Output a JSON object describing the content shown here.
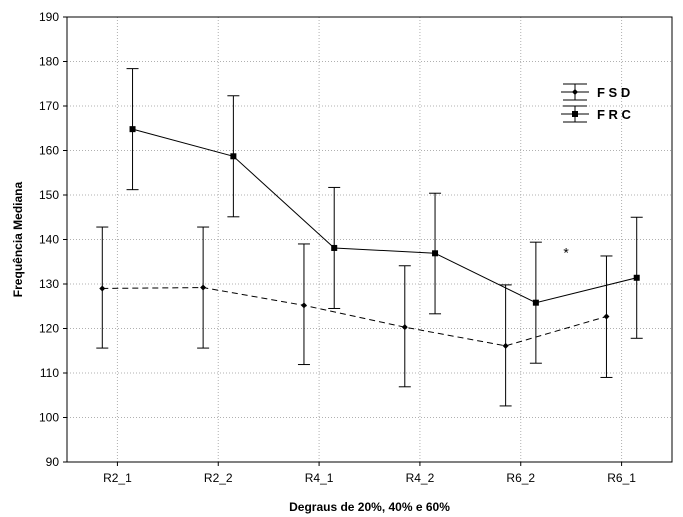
{
  "chart_data": {
    "type": "line",
    "title": "",
    "xlabel": "Degraus de 20%, 40% e 60%",
    "ylabel": "Frequência Mediana",
    "categories": [
      "R2_1",
      "R2_2",
      "R4_1",
      "R4_2",
      "R6_2",
      "R6_1"
    ],
    "ylim": [
      90,
      190
    ],
    "yticks": [
      90,
      100,
      110,
      120,
      130,
      140,
      150,
      160,
      170,
      180,
      190
    ],
    "grid": true,
    "legend_position": "top-right",
    "series": [
      {
        "name": "FSD",
        "line_style": "dashed",
        "marker": "diamond",
        "values": [
          129,
          129.2,
          125.2,
          120.3,
          116.1,
          122.7
        ],
        "err_low": [
          115.6,
          115.6,
          111.9,
          106.9,
          102.6,
          109
        ],
        "err_high": [
          142.8,
          142.8,
          139,
          134.1,
          129.8,
          136.3
        ]
      },
      {
        "name": "FRC",
        "line_style": "solid",
        "marker": "square",
        "values": [
          164.8,
          158.7,
          138.1,
          136.9,
          125.8,
          131.4
        ],
        "err_low": [
          151.2,
          145.1,
          124.5,
          123.3,
          112.2,
          117.8
        ],
        "err_high": [
          178.4,
          172.3,
          151.7,
          150.4,
          139.4,
          145
        ]
      }
    ],
    "annotations": [
      {
        "text": "*",
        "x": "R6_2",
        "x_offset": 0.45,
        "y": 136
      }
    ]
  }
}
